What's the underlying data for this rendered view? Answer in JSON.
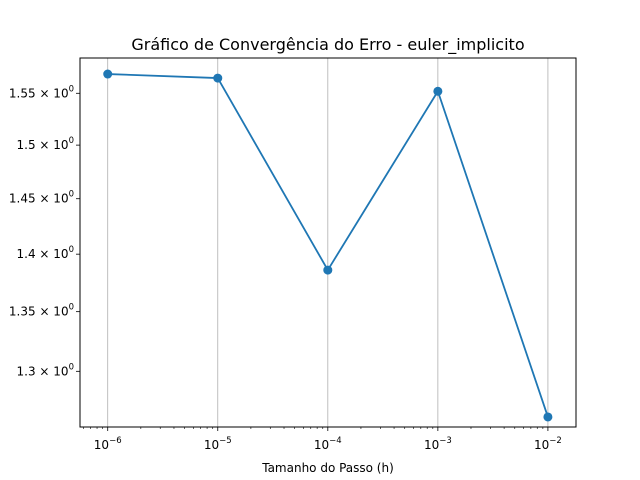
{
  "chart_data": {
    "type": "line",
    "title": "Gráfico de Convergência do Erro - euler_implicito",
    "xlabel": "Tamanho do Passo (h)",
    "ylabel": "",
    "xscale": "log",
    "yscale": "log",
    "xlim": [
      5.6e-07,
      0.018
    ],
    "ylim": [
      1.255,
      1.585
    ],
    "grid": "vertical major gridlines only",
    "x_ticks": [
      {
        "base": "10",
        "exp": "−6",
        "value": 1e-06
      },
      {
        "base": "10",
        "exp": "−5",
        "value": 1e-05
      },
      {
        "base": "10",
        "exp": "−4",
        "value": 0.0001
      },
      {
        "base": "10",
        "exp": "−3",
        "value": 0.001
      },
      {
        "base": "10",
        "exp": "−2",
        "value": 0.01
      }
    ],
    "y_ticks": [
      {
        "mant": "1.3 × 10",
        "exp": "0",
        "value": 1.3
      },
      {
        "mant": "1.35 × 10",
        "exp": "0",
        "value": 1.35
      },
      {
        "mant": "1.4 × 10",
        "exp": "0",
        "value": 1.4
      },
      {
        "mant": "1.45 × 10",
        "exp": "0",
        "value": 1.45
      },
      {
        "mant": "1.5 × 10",
        "exp": "0",
        "value": 1.5
      },
      {
        "mant": "1.55 × 10",
        "exp": "0",
        "value": 1.55
      }
    ],
    "series": [
      {
        "color": "#1f77b4",
        "marker": "circle",
        "x": [
          1e-06,
          1e-05,
          0.0001,
          0.001,
          0.01
        ],
        "y": [
          1.569,
          1.565,
          1.386,
          1.552,
          1.263
        ]
      }
    ]
  }
}
